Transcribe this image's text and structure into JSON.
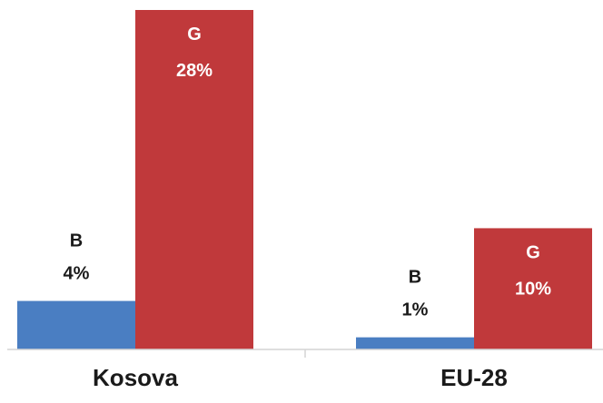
{
  "chart_data": {
    "type": "bar",
    "categories": [
      "Kosova",
      "EU-28"
    ],
    "series": [
      {
        "name": "B",
        "values": [
          4,
          1
        ],
        "color": "#4A7EC2"
      },
      {
        "name": "G",
        "values": [
          28,
          10
        ],
        "color": "#C0393B"
      }
    ],
    "value_suffix": "%",
    "ylim": [
      0,
      28
    ],
    "grid": false,
    "legend": "none",
    "title": "",
    "xlabel": "",
    "ylabel": ""
  }
}
